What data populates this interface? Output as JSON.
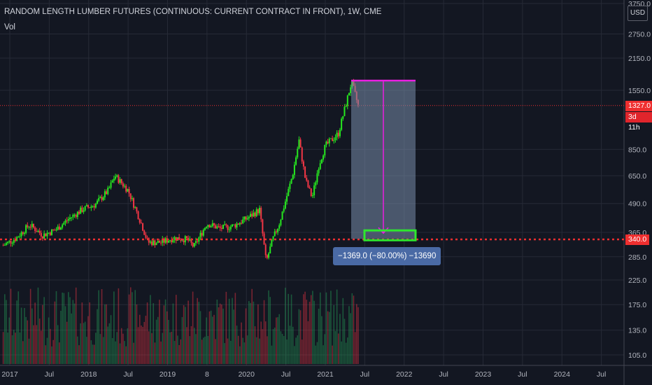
{
  "header": {
    "title": "RANDOM LENGTH LUMBER FUTURES (CONTINUOUS: CURRENT CONTRACT IN FRONT), 1W, CME",
    "volume_label": "Vol",
    "currency": "USD"
  },
  "price_tags": {
    "last_price": "1327.0",
    "countdown": "3d 11h",
    "level": "340.0"
  },
  "measure": {
    "label": "−1369.0 (−80.00%) −13690"
  },
  "colors": {
    "background": "#131722",
    "up": "#26e81f",
    "down": "#f23645",
    "measure_line": "#e91ee0",
    "target_box": "#2ee82e",
    "level_line": "#ef2f2f"
  },
  "chart_data": {
    "type": "candlestick",
    "title": "RANDOM LENGTH LUMBER FUTURES (CONTINUOUS: CURRENT CONTRACT IN FRONT), 1W, CME",
    "scale": "log",
    "ylim": [
      100,
      3750
    ],
    "y_ticks": [
      "3750.0",
      "2750.0",
      "2150.0",
      "1550.0",
      "850.0",
      "650.0",
      "490.0",
      "365.0",
      "285.0",
      "225.0",
      "175.0",
      "135.0",
      "105.0"
    ],
    "x_ticks": [
      "2017",
      "Jul",
      "2018",
      "Jul",
      "2019",
      "8",
      "2020",
      "Jul",
      "2021",
      "Jul",
      "2022",
      "Jul",
      "2023",
      "Jul",
      "2024",
      "Jul"
    ],
    "x_tick_dates": [
      "2017-01",
      "2017-07",
      "2018-01",
      "2018-07",
      "2019-01",
      "2019-07",
      "2020-01",
      "2020-07",
      "2021-01",
      "2021-07",
      "2022-01",
      "2022-07",
      "2023-01",
      "2023-07",
      "2024-01",
      "2024-07"
    ],
    "price_path": [
      [
        "2016-12",
        320
      ],
      [
        "2017-02",
        345
      ],
      [
        "2017-04",
        395
      ],
      [
        "2017-06",
        355
      ],
      [
        "2017-08",
        375
      ],
      [
        "2017-10",
        420
      ],
      [
        "2017-12",
        460
      ],
      [
        "2018-02",
        485
      ],
      [
        "2018-04",
        560
      ],
      [
        "2018-05",
        650
      ],
      [
        "2018-07",
        560
      ],
      [
        "2018-09",
        400
      ],
      [
        "2018-10",
        330
      ],
      [
        "2018-12",
        330
      ],
      [
        "2019-02",
        345
      ],
      [
        "2019-04",
        340
      ],
      [
        "2019-05",
        315
      ],
      [
        "2019-07",
        400
      ],
      [
        "2019-09",
        380
      ],
      [
        "2019-11",
        390
      ],
      [
        "2020-01",
        420
      ],
      [
        "2020-03",
        460
      ],
      [
        "2020-04",
        270
      ],
      [
        "2020-05",
        340
      ],
      [
        "2020-06",
        400
      ],
      [
        "2020-08",
        650
      ],
      [
        "2020-09",
        930
      ],
      [
        "2020-10",
        620
      ],
      [
        "2020-11",
        520
      ],
      [
        "2020-12",
        720
      ],
      [
        "2021-01",
        880
      ],
      [
        "2021-03",
        1000
      ],
      [
        "2021-04",
        1300
      ],
      [
        "2021-05",
        1690
      ],
      [
        "2021-06",
        1327
      ]
    ],
    "last_price": 1327.0,
    "reference_level": 340.0,
    "measure": {
      "from_price": 1711.0,
      "to_price": 342.0,
      "change": -1369.0,
      "percent": -80.0,
      "ticks": -13690
    }
  }
}
